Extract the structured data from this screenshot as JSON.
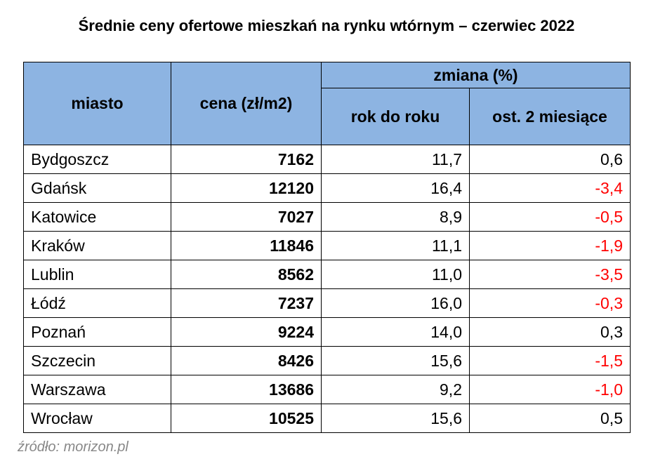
{
  "title": "Średnie ceny ofertowe mieszkań na rynku wtórnym – czerwiec 2022",
  "table": {
    "header": {
      "city": "miasto",
      "price": "cena (zł/m2)",
      "change": "zmiana (%)",
      "yoy": "rok do roku",
      "two_months": "ost. 2 miesiące"
    },
    "rows": [
      [
        "Bydgoszcz",
        "7162",
        "11,7",
        "0,6"
      ],
      [
        "Gdańsk",
        "12120",
        "16,4",
        "-3,4"
      ],
      [
        "Katowice",
        "7027",
        "8,9",
        "-0,5"
      ],
      [
        "Kraków",
        "11846",
        "11,1",
        "-1,9"
      ],
      [
        "Lublin",
        "8562",
        "11,0",
        "-3,5"
      ],
      [
        "Łódź",
        "7237",
        "16,0",
        "-0,3"
      ],
      [
        "Poznań",
        "9224",
        "14,0",
        "0,3"
      ],
      [
        "Szczecin",
        "8426",
        "15,6",
        "-1,5"
      ],
      [
        "Warszawa",
        "13686",
        "9,2",
        "-1,0"
      ],
      [
        "Wrocław",
        "10525",
        "15,6",
        "0,5"
      ]
    ],
    "negative_color": "#ff0000"
  },
  "source": "źródło: morizon.pl"
}
